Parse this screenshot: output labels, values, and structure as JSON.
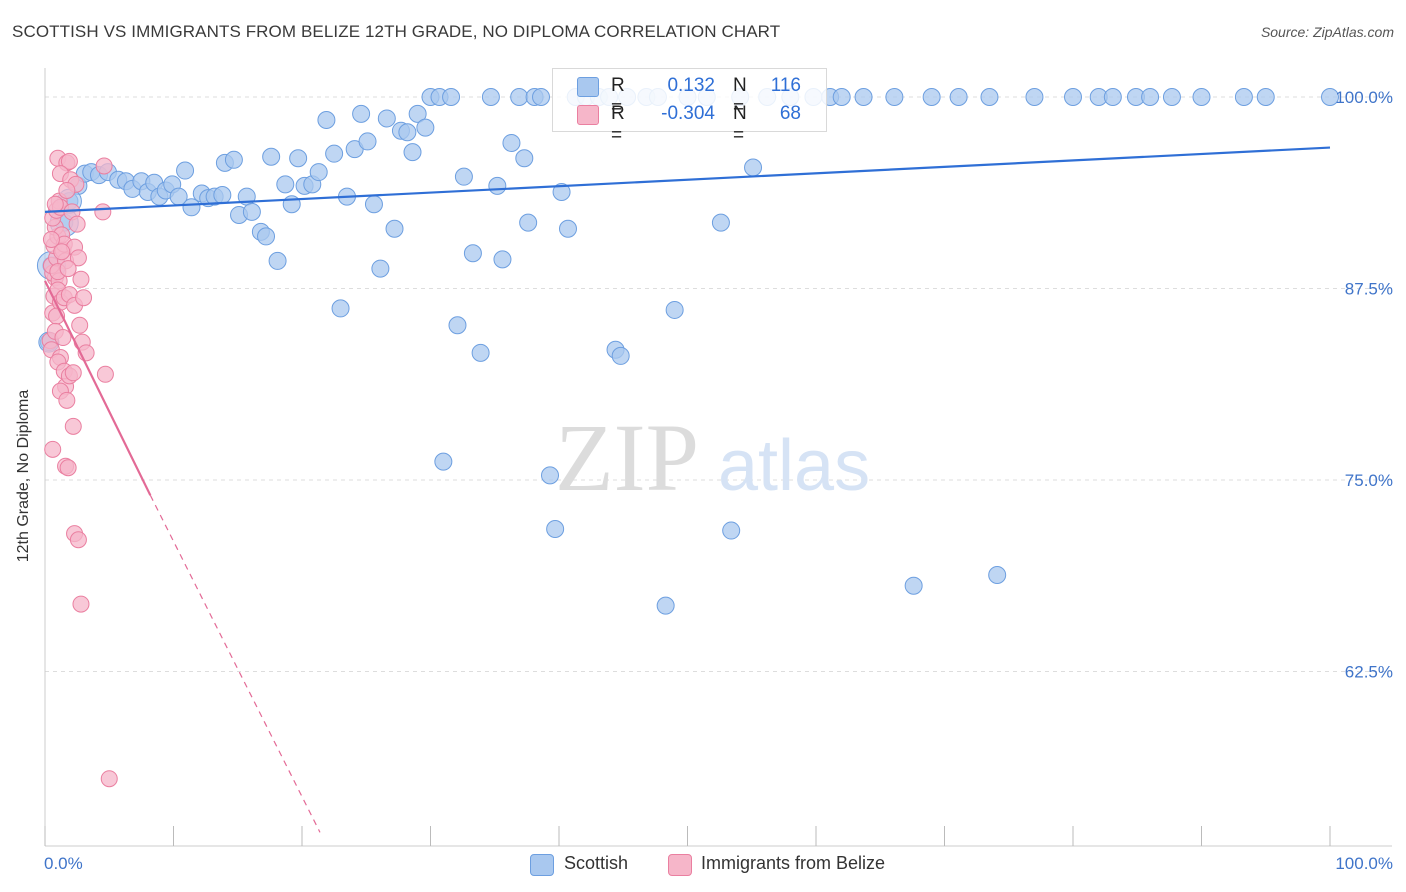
{
  "title": "SCOTTISH VS IMMIGRANTS FROM BELIZE 12TH GRADE, NO DIPLOMA CORRELATION CHART",
  "source": "Source: ZipAtlas.com",
  "watermark": {
    "zip": "ZIP",
    "atlas": "atlas"
  },
  "legend_top": {
    "row1": {
      "r_label": "R =",
      "r_value": "0.132",
      "n_label": "N =",
      "n_value": "116"
    },
    "row2": {
      "r_label": "R =",
      "r_value": "-0.304",
      "n_label": "N =",
      "n_value": "68"
    }
  },
  "legend_bottom": {
    "series1": "Scottish",
    "series2": "Immigrants from Belize"
  },
  "colors": {
    "blue_fill": "#a9c8ef",
    "blue_stroke": "#6d9fe0",
    "blue_line": "#2f6fd6",
    "pink_fill": "#f6b6c9",
    "pink_stroke": "#ea7fa0",
    "pink_line": "#e36a96",
    "axis_text": "#3f74c9",
    "grid": "#dddddd"
  },
  "chart_data": {
    "type": "scatter",
    "title": "SCOTTISH VS IMMIGRANTS FROM BELIZE 12TH GRADE, NO DIPLOMA CORRELATION CHART",
    "xlabel": "",
    "ylabel": "12th Grade, No Diploma",
    "xlim": [
      0,
      100
    ],
    "ylim": [
      51.5,
      101.5
    ],
    "x_tick_labels": [
      "0.0%",
      "100.0%"
    ],
    "y_ticks": [
      {
        "value": 100,
        "label": "100.0%"
      },
      {
        "value": 87.5,
        "label": "87.5%"
      },
      {
        "value": 75,
        "label": "75.0%"
      },
      {
        "value": 62.5,
        "label": "62.5%"
      }
    ],
    "grid": true,
    "legend_position": "top-center",
    "series": [
      {
        "name": "Scottish",
        "r": 0.132,
        "n": 116,
        "trend": {
          "x0": 0,
          "y0": 92.5,
          "x1": 100,
          "y1": 96.7
        },
        "points": [
          [
            0.5,
            89.0
          ],
          [
            0.3,
            84.0
          ],
          [
            1.5,
            91.8
          ],
          [
            1.9,
            93.2
          ],
          [
            2.6,
            94.2
          ],
          [
            3.1,
            95.0
          ],
          [
            3.6,
            95.1
          ],
          [
            4.2,
            94.9
          ],
          [
            4.9,
            95.1
          ],
          [
            5.7,
            94.6
          ],
          [
            6.3,
            94.5
          ],
          [
            6.8,
            94.0
          ],
          [
            7.5,
            94.5
          ],
          [
            8.0,
            93.8
          ],
          [
            8.5,
            94.4
          ],
          [
            8.9,
            93.5
          ],
          [
            9.4,
            93.9
          ],
          [
            9.9,
            94.3
          ],
          [
            10.4,
            93.5
          ],
          [
            10.9,
            95.2
          ],
          [
            11.4,
            92.8
          ],
          [
            12.2,
            93.7
          ],
          [
            12.7,
            93.4
          ],
          [
            13.2,
            93.5
          ],
          [
            13.8,
            93.6
          ],
          [
            14.0,
            95.7
          ],
          [
            14.7,
            95.9
          ],
          [
            15.1,
            92.3
          ],
          [
            15.7,
            93.5
          ],
          [
            16.1,
            92.5
          ],
          [
            16.8,
            91.2
          ],
          [
            17.2,
            90.9
          ],
          [
            17.6,
            96.1
          ],
          [
            18.1,
            89.3
          ],
          [
            18.7,
            94.3
          ],
          [
            19.2,
            93.0
          ],
          [
            19.7,
            96.0
          ],
          [
            20.2,
            94.2
          ],
          [
            20.8,
            94.3
          ],
          [
            21.3,
            95.1
          ],
          [
            21.9,
            98.5
          ],
          [
            22.5,
            96.3
          ],
          [
            23.0,
            86.2
          ],
          [
            23.5,
            93.5
          ],
          [
            24.1,
            96.6
          ],
          [
            24.6,
            98.9
          ],
          [
            25.1,
            97.1
          ],
          [
            25.6,
            93.0
          ],
          [
            26.1,
            88.8
          ],
          [
            26.6,
            98.6
          ],
          [
            27.2,
            91.4
          ],
          [
            27.7,
            97.8
          ],
          [
            28.2,
            97.7
          ],
          [
            28.6,
            96.4
          ],
          [
            29.0,
            98.9
          ],
          [
            29.6,
            98.0
          ],
          [
            30.0,
            100.0
          ],
          [
            30.7,
            100.0
          ],
          [
            31.0,
            76.2
          ],
          [
            31.6,
            100.0
          ],
          [
            32.1,
            85.1
          ],
          [
            32.6,
            94.8
          ],
          [
            33.3,
            89.8
          ],
          [
            33.9,
            83.3
          ],
          [
            34.7,
            100.0
          ],
          [
            35.2,
            94.2
          ],
          [
            35.6,
            89.4
          ],
          [
            36.3,
            97.0
          ],
          [
            36.9,
            100.0
          ],
          [
            37.3,
            96.0
          ],
          [
            37.6,
            91.8
          ],
          [
            38.1,
            100.0
          ],
          [
            38.6,
            100.0
          ],
          [
            39.3,
            75.3
          ],
          [
            39.7,
            71.8
          ],
          [
            40.2,
            93.8
          ],
          [
            40.7,
            91.4
          ],
          [
            41.3,
            100.0
          ],
          [
            42.1,
            100.0
          ],
          [
            43.1,
            100.0
          ],
          [
            43.9,
            100.0
          ],
          [
            44.4,
            83.5
          ],
          [
            44.8,
            83.1
          ],
          [
            45.3,
            100.0
          ],
          [
            46.8,
            100.0
          ],
          [
            47.7,
            100.0
          ],
          [
            48.3,
            66.8
          ],
          [
            49.0,
            86.1
          ],
          [
            50.0,
            100.0
          ],
          [
            51.5,
            100.0
          ],
          [
            52.6,
            91.8
          ],
          [
            53.4,
            71.7
          ],
          [
            54.1,
            100.0
          ],
          [
            55.1,
            95.4
          ],
          [
            56.2,
            100.0
          ],
          [
            58.0,
            100.0
          ],
          [
            59.8,
            100.0
          ],
          [
            61.1,
            100.0
          ],
          [
            62.0,
            100.0
          ],
          [
            63.7,
            100.0
          ],
          [
            66.1,
            100.0
          ],
          [
            67.6,
            68.1
          ],
          [
            69.0,
            100.0
          ],
          [
            71.1,
            100.0
          ],
          [
            73.5,
            100.0
          ],
          [
            74.1,
            68.8
          ],
          [
            77.0,
            100.0
          ],
          [
            80.0,
            100.0
          ],
          [
            82.0,
            100.0
          ],
          [
            83.1,
            100.0
          ],
          [
            84.9,
            100.0
          ],
          [
            86.0,
            100.0
          ],
          [
            87.7,
            100.0
          ],
          [
            90.0,
            100.0
          ],
          [
            93.3,
            100.0
          ],
          [
            95.0,
            100.0
          ],
          [
            100.0,
            100.0
          ]
        ]
      },
      {
        "name": "Immigrants from Belize",
        "r": -0.304,
        "n": 68,
        "trend_solid": {
          "x0": 0,
          "y0": 88.0,
          "x1": 8.2,
          "y1": 74.0
        },
        "trend_dashed": {
          "x0": 8.2,
          "y0": 74.0,
          "x1": 21.4,
          "y1": 52.0
        },
        "points": [
          [
            0.4,
            84.1
          ],
          [
            0.5,
            83.5
          ],
          [
            0.6,
            85.9
          ],
          [
            0.7,
            87.0
          ],
          [
            0.8,
            88.2
          ],
          [
            0.6,
            88.5
          ],
          [
            0.5,
            89.0
          ],
          [
            0.9,
            89.5
          ],
          [
            0.7,
            90.3
          ],
          [
            1.0,
            90.9
          ],
          [
            0.8,
            91.5
          ],
          [
            0.6,
            92.1
          ],
          [
            0.9,
            92.6
          ],
          [
            1.1,
            93.2
          ],
          [
            1.2,
            92.8
          ],
          [
            1.3,
            91.0
          ],
          [
            1.4,
            90.0
          ],
          [
            1.5,
            90.4
          ],
          [
            1.6,
            89.3
          ],
          [
            1.1,
            88.0
          ],
          [
            1.0,
            87.4
          ],
          [
            1.2,
            86.6
          ],
          [
            1.5,
            86.9
          ],
          [
            0.9,
            85.7
          ],
          [
            0.8,
            84.7
          ],
          [
            1.4,
            84.3
          ],
          [
            1.2,
            83.0
          ],
          [
            1.0,
            82.7
          ],
          [
            1.5,
            82.1
          ],
          [
            1.6,
            81.1
          ],
          [
            1.2,
            80.8
          ],
          [
            1.7,
            80.2
          ],
          [
            1.9,
            81.8
          ],
          [
            2.2,
            78.5
          ],
          [
            0.6,
            77.0
          ],
          [
            1.6,
            75.9
          ],
          [
            1.8,
            75.8
          ],
          [
            2.3,
            71.5
          ],
          [
            2.6,
            71.1
          ],
          [
            2.8,
            66.9
          ],
          [
            1.0,
            96.0
          ],
          [
            1.7,
            95.7
          ],
          [
            1.9,
            95.8
          ],
          [
            1.2,
            95.0
          ],
          [
            2.0,
            94.6
          ],
          [
            2.4,
            94.3
          ],
          [
            2.1,
            92.5
          ],
          [
            2.5,
            91.7
          ],
          [
            2.3,
            90.2
          ],
          [
            2.6,
            89.5
          ],
          [
            2.8,
            88.1
          ],
          [
            1.9,
            87.1
          ],
          [
            2.3,
            86.4
          ],
          [
            3.0,
            86.9
          ],
          [
            2.7,
            85.1
          ],
          [
            2.9,
            84.0
          ],
          [
            3.2,
            83.3
          ],
          [
            1.3,
            89.9
          ],
          [
            1.7,
            93.9
          ],
          [
            4.6,
            95.5
          ],
          [
            4.5,
            92.5
          ],
          [
            4.7,
            81.9
          ],
          [
            5.0,
            55.5
          ],
          [
            1.0,
            88.6
          ],
          [
            0.5,
            90.7
          ],
          [
            0.8,
            93.0
          ],
          [
            1.8,
            88.8
          ],
          [
            2.2,
            82.0
          ]
        ]
      }
    ]
  }
}
